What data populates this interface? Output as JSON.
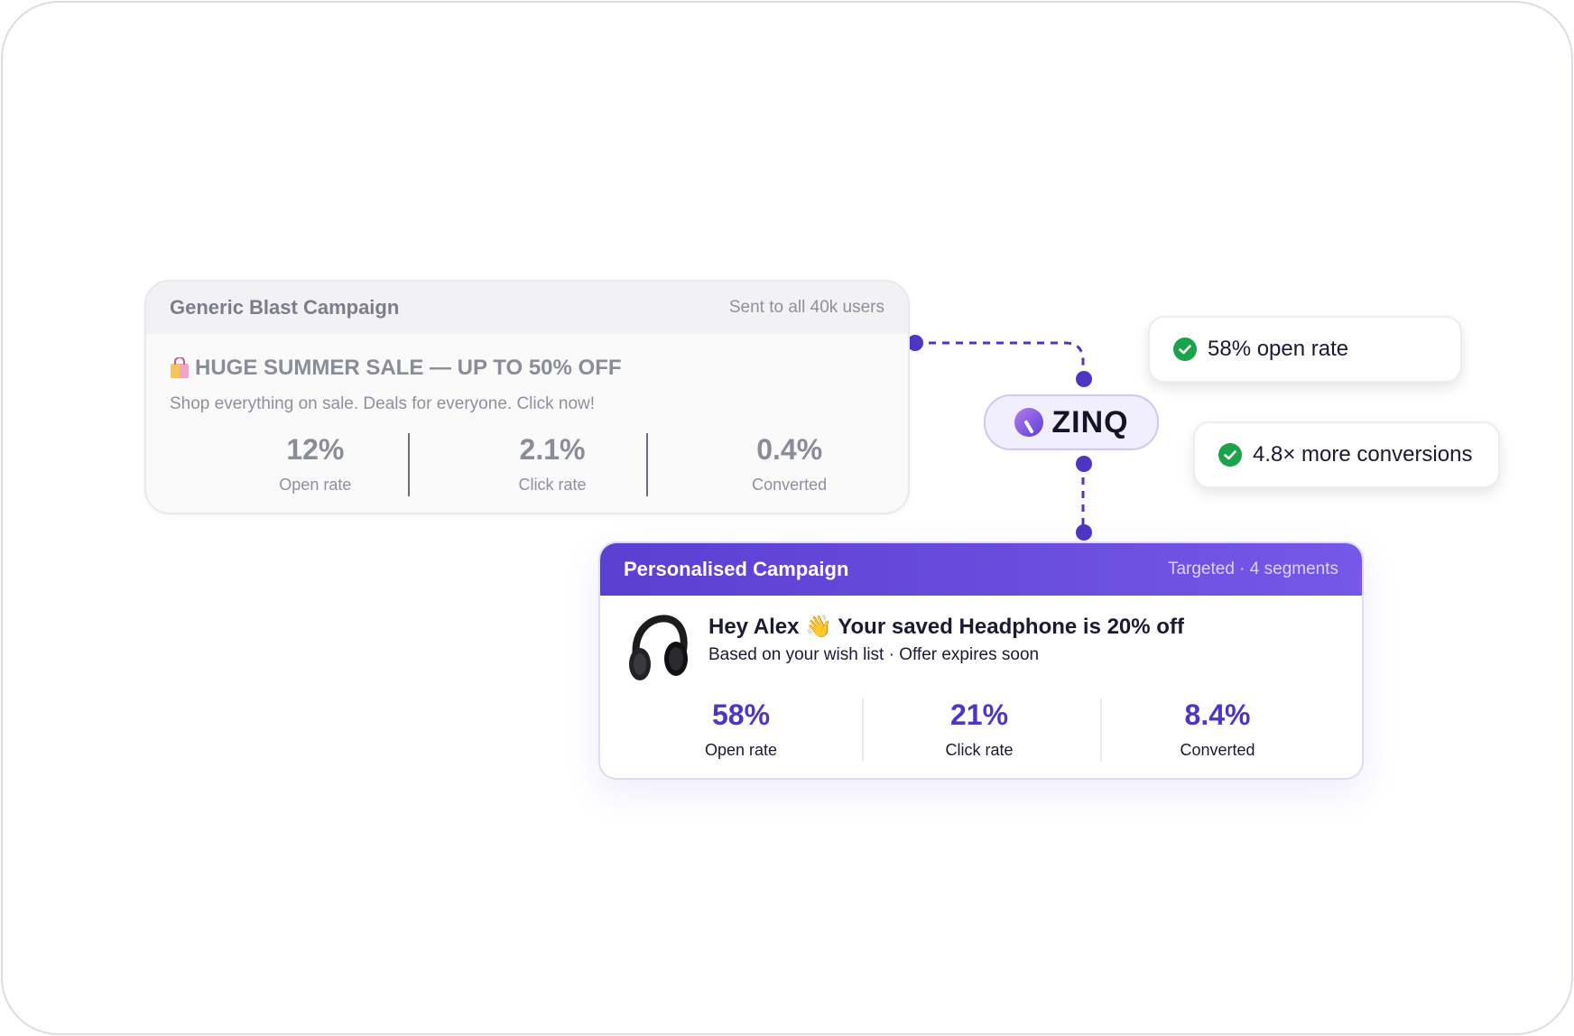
{
  "generic_campaign": {
    "title": "Generic Blast Campaign",
    "meta": "Sent to all 40k users",
    "headline": "HUGE SUMMER SALE — UP TO 50% OFF",
    "headline_icon": "shopping-bag-icon",
    "subtext": "Shop everything on sale. Deals for everyone. Click now!",
    "stats": [
      {
        "value": "12%",
        "label": "Open rate"
      },
      {
        "value": "2.1%",
        "label": "Click rate"
      },
      {
        "value": "0.4%",
        "label": "Converted"
      }
    ]
  },
  "brand": {
    "name": "ZINQ",
    "logo_icon": "zinq-logo-icon",
    "accent": "#5b3fd3"
  },
  "results": [
    {
      "text": "58% open rate",
      "icon": "check-circle-icon",
      "color": "#1aa34a"
    },
    {
      "text": "4.8× more conversions",
      "icon": "check-circle-icon",
      "color": "#1aa34a"
    }
  ],
  "personalised_campaign": {
    "title": "Personalised Campaign",
    "meta": "Targeted · 4 segments",
    "image_icon": "headphone-icon",
    "headline": "Hey Alex 👋 Your saved Headphone is 20% off",
    "subtext": "Based on your wish list · Offer expires soon",
    "stats": [
      {
        "value": "58%",
        "label": "Open rate"
      },
      {
        "value": "21%",
        "label": "Click rate"
      },
      {
        "value": "8.4%",
        "label": "Converted"
      }
    ]
  }
}
